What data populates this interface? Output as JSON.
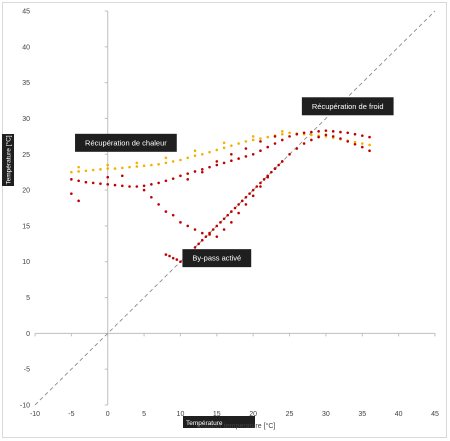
{
  "chart_data": {
    "type": "scatter",
    "title": "",
    "xlabel": "Température",
    "xlabel_overlay": "Outdoor temperature [°C]",
    "ylabel": "Température [°C]",
    "xlim": [
      -10,
      45
    ],
    "ylim": [
      -10,
      45
    ],
    "x_ticks": [
      -10,
      -5,
      0,
      5,
      10,
      15,
      20,
      25,
      30,
      35,
      40,
      45
    ],
    "y_ticks": [
      -10,
      -5,
      0,
      5,
      10,
      15,
      20,
      25,
      30,
      35,
      40,
      45
    ],
    "grid": false,
    "reference_line": {
      "style": "dashed",
      "color": "#8c8c8c",
      "from": [
        -10,
        -10
      ],
      "to": [
        45,
        45
      ]
    },
    "annotations": [
      {
        "text": "Récupération de chaleur",
        "x": 2.5,
        "y": 26.6
      },
      {
        "text": "Récupération de froid",
        "x": 33,
        "y": 31.7
      },
      {
        "text": "By-pass activé",
        "x": 15,
        "y": 10.5
      }
    ],
    "series": [
      {
        "color": "#f2b200",
        "points": [
          [
            -5,
            22.5
          ],
          [
            -4,
            22.6
          ],
          [
            -3,
            22.7
          ],
          [
            -2,
            22.8
          ],
          [
            -1,
            22.9
          ],
          [
            0,
            23
          ],
          [
            1,
            23
          ],
          [
            2,
            23.1
          ],
          [
            3,
            23.2
          ],
          [
            4,
            23.3
          ],
          [
            5,
            23.4
          ],
          [
            6,
            23.5
          ],
          [
            7,
            23.6
          ],
          [
            8,
            23.8
          ],
          [
            9,
            24
          ],
          [
            10,
            24.2
          ],
          [
            11,
            24.5
          ],
          [
            12,
            24.8
          ],
          [
            13,
            25
          ],
          [
            14,
            25.3
          ],
          [
            15,
            25.6
          ],
          [
            16,
            25.9
          ],
          [
            17,
            26.2
          ],
          [
            18,
            26.5
          ],
          [
            19,
            26.8
          ],
          [
            20,
            27
          ],
          [
            21,
            27.2
          ],
          [
            22,
            27.4
          ],
          [
            23,
            27.6
          ],
          [
            24,
            27.8
          ],
          [
            25,
            28
          ],
          [
            26,
            27.9
          ],
          [
            27,
            27.8
          ],
          [
            28,
            27.7
          ],
          [
            29,
            27.6
          ],
          [
            30,
            27.5
          ],
          [
            31,
            27.3
          ],
          [
            32,
            27.1
          ],
          [
            33,
            26.9
          ],
          [
            34,
            26.7
          ],
          [
            35,
            26.5
          ],
          [
            36,
            26.3
          ],
          [
            -4,
            23.2
          ],
          [
            0,
            23.5
          ],
          [
            4,
            23.8
          ],
          [
            8,
            24.5
          ],
          [
            12,
            25.5
          ],
          [
            16,
            26.6
          ],
          [
            20,
            27.5
          ],
          [
            24,
            28.2
          ]
        ]
      },
      {
        "color": "#c00000",
        "points": [
          [
            -5,
            21.5
          ],
          [
            -4,
            21.3
          ],
          [
            -3,
            21.1
          ],
          [
            -2,
            21
          ],
          [
            -1,
            20.9
          ],
          [
            0,
            20.8
          ],
          [
            1,
            20.7
          ],
          [
            2,
            20.6
          ],
          [
            3,
            20.5
          ],
          [
            4,
            20.5
          ],
          [
            5,
            20.6
          ],
          [
            6,
            20.8
          ],
          [
            7,
            21
          ],
          [
            8,
            21.3
          ],
          [
            9,
            21.6
          ],
          [
            10,
            22
          ],
          [
            11,
            22.3
          ],
          [
            12,
            22.6
          ],
          [
            13,
            22.9
          ],
          [
            14,
            23.2
          ],
          [
            15,
            23.5
          ],
          [
            16,
            23.8
          ],
          [
            17,
            24.1
          ],
          [
            18,
            24.4
          ],
          [
            19,
            24.7
          ],
          [
            20,
            25
          ],
          [
            21,
            25.5
          ],
          [
            22,
            26
          ],
          [
            23,
            26.5
          ],
          [
            24,
            27
          ],
          [
            25,
            27.5
          ],
          [
            26,
            27.8
          ],
          [
            27,
            28
          ],
          [
            28,
            28.1
          ],
          [
            29,
            28.2
          ],
          [
            30,
            28.3
          ],
          [
            31,
            28.2
          ],
          [
            32,
            28.1
          ],
          [
            33,
            28
          ],
          [
            34,
            27.8
          ],
          [
            35,
            27.6
          ],
          [
            36,
            27.4
          ],
          [
            -5,
            19.5
          ],
          [
            -4,
            18.5
          ],
          [
            0,
            21.8
          ],
          [
            2,
            22
          ],
          [
            5,
            20
          ],
          [
            6,
            19
          ],
          [
            7,
            18
          ],
          [
            8,
            17
          ],
          [
            9,
            16.5
          ],
          [
            10,
            15.5
          ],
          [
            11,
            15
          ],
          [
            12,
            14.5
          ],
          [
            13,
            14
          ],
          [
            14,
            13.8
          ],
          [
            15,
            13.5
          ],
          [
            16,
            14.5
          ],
          [
            17,
            15.5
          ],
          [
            18,
            16.8
          ],
          [
            19,
            18
          ],
          [
            20,
            19.2
          ],
          [
            21,
            20.5
          ],
          [
            22,
            21.8
          ],
          [
            23,
            23
          ],
          [
            24,
            24
          ],
          [
            25,
            25
          ],
          [
            26,
            25.8
          ],
          [
            27,
            26.5
          ],
          [
            28,
            27
          ],
          [
            29,
            27.4
          ],
          [
            30,
            27.7
          ],
          [
            31,
            27.5
          ],
          [
            32,
            27.2
          ],
          [
            33,
            26.8
          ],
          [
            34,
            26.4
          ],
          [
            35,
            26
          ],
          [
            36,
            25.5
          ],
          [
            11,
            21.5
          ],
          [
            13,
            22.5
          ],
          [
            15,
            24
          ],
          [
            17,
            25
          ],
          [
            19,
            25.8
          ],
          [
            21,
            26.8
          ],
          [
            23,
            27.5
          ],
          [
            8,
            11
          ],
          [
            8.5,
            10.8
          ],
          [
            9,
            10.5
          ],
          [
            9.5,
            10.3
          ],
          [
            10,
            10
          ],
          [
            10.5,
            10.5
          ],
          [
            11,
            11
          ],
          [
            11.5,
            11.5
          ],
          [
            12,
            12
          ],
          [
            12.5,
            12.5
          ],
          [
            13,
            13
          ],
          [
            13.5,
            13.5
          ],
          [
            14,
            14
          ],
          [
            14.5,
            14.5
          ],
          [
            15,
            15
          ],
          [
            15.5,
            15.5
          ],
          [
            16,
            16
          ],
          [
            16.5,
            16.5
          ],
          [
            17,
            17
          ],
          [
            17.5,
            17.5
          ],
          [
            18,
            18
          ],
          [
            18.5,
            18.5
          ],
          [
            19,
            19
          ],
          [
            19.5,
            19.5
          ],
          [
            20,
            20
          ],
          [
            20.5,
            20.5
          ],
          [
            21,
            21
          ],
          [
            21.5,
            21.5
          ],
          [
            22,
            22
          ],
          [
            22.5,
            22.5
          ],
          [
            23,
            23
          ],
          [
            23.5,
            23.5
          ],
          [
            24,
            24
          ]
        ]
      }
    ]
  }
}
